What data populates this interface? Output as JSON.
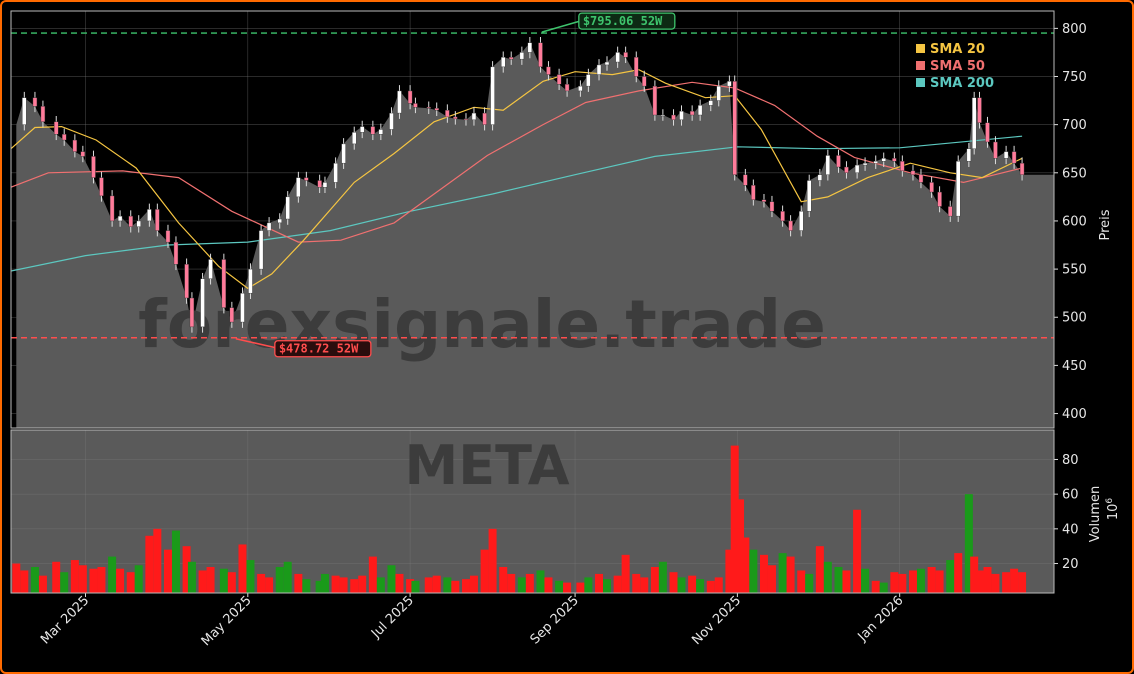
{
  "colors": {
    "bg": "#000000",
    "plot_bg": "#5a5a5a",
    "grid": "#7a7a7a",
    "up": "#1a9a1a",
    "down": "#ff1a1a",
    "sma20": "#f5c542",
    "sma50": "#f07070",
    "sma200": "#5cc8c0",
    "high": "#3ec46d",
    "low": "#ff4d4d",
    "border": "#ff6a00"
  },
  "watermark": {
    "brand": "forexsignale.trade",
    "ticker": "META"
  },
  "price_panel": {
    "ylabel": "Preis",
    "ylim": [
      385,
      818
    ],
    "yticks": [
      400,
      450,
      500,
      550,
      600,
      650,
      700,
      750,
      800
    ]
  },
  "volume_panel": {
    "ylabel": "Volumen",
    "unit": "10",
    "unit_exp": "6",
    "ylim": [
      3,
      97
    ],
    "yticks": [
      20,
      40,
      60,
      80
    ]
  },
  "annotations": {
    "high": {
      "value": 795.06,
      "label": "$795.06 52W"
    },
    "low": {
      "value": 478.72,
      "label": "$478.72 52W"
    }
  },
  "legend": [
    {
      "key": "sma20",
      "label": "SMA 20",
      "color": "#f5c542"
    },
    {
      "key": "sma50",
      "label": "SMA 50",
      "color": "#f07070"
    },
    {
      "key": "sma200",
      "label": "SMA 200",
      "color": "#5cc8c0"
    }
  ],
  "chart_data": {
    "type": "line",
    "title": "",
    "xlabel": "",
    "x_ticks": [
      "Mar 2025",
      "May 2025",
      "Jul 2025",
      "Sep 2025",
      "Nov 2025",
      "Jan 2026"
    ],
    "x_tick_dates": [
      "2025-03-01",
      "2025-05-01",
      "2025-07-01",
      "2025-09-01",
      "2025-11-01",
      "2026-01-01"
    ],
    "x_range": [
      "2025-02-01",
      "2026-02-28"
    ],
    "close_series": [
      [
        "2025-02-03",
        700
      ],
      [
        "2025-02-06",
        728
      ],
      [
        "2025-02-10",
        719
      ],
      [
        "2025-02-13",
        703
      ],
      [
        "2025-02-18",
        690
      ],
      [
        "2025-02-21",
        684
      ],
      [
        "2025-02-25",
        672
      ],
      [
        "2025-02-28",
        667
      ],
      [
        "2025-03-04",
        645
      ],
      [
        "2025-03-07",
        626
      ],
      [
        "2025-03-11",
        600
      ],
      [
        "2025-03-14",
        605
      ],
      [
        "2025-03-18",
        594
      ],
      [
        "2025-03-21",
        600
      ],
      [
        "2025-03-25",
        612
      ],
      [
        "2025-03-28",
        590
      ],
      [
        "2025-04-01",
        578
      ],
      [
        "2025-04-04",
        555
      ],
      [
        "2025-04-08",
        520
      ],
      [
        "2025-04-10",
        490
      ],
      [
        "2025-04-14",
        540
      ],
      [
        "2025-04-17",
        560
      ],
      [
        "2025-04-22",
        510
      ],
      [
        "2025-04-25",
        495
      ],
      [
        "2025-04-29",
        525
      ],
      [
        "2025-05-02",
        550
      ],
      [
        "2025-05-06",
        590
      ],
      [
        "2025-05-09",
        598
      ],
      [
        "2025-05-13",
        602
      ],
      [
        "2025-05-16",
        625
      ],
      [
        "2025-05-20",
        645
      ],
      [
        "2025-05-23",
        642
      ],
      [
        "2025-05-28",
        635
      ],
      [
        "2025-05-30",
        640
      ],
      [
        "2025-06-03",
        660
      ],
      [
        "2025-06-06",
        680
      ],
      [
        "2025-06-10",
        692
      ],
      [
        "2025-06-13",
        698
      ],
      [
        "2025-06-17",
        690
      ],
      [
        "2025-06-20",
        695
      ],
      [
        "2025-06-24",
        712
      ],
      [
        "2025-06-27",
        735
      ],
      [
        "2025-07-01",
        722
      ],
      [
        "2025-07-03",
        718
      ],
      [
        "2025-07-08",
        717
      ],
      [
        "2025-07-11",
        715
      ],
      [
        "2025-07-15",
        708
      ],
      [
        "2025-07-18",
        706
      ],
      [
        "2025-07-22",
        705
      ],
      [
        "2025-07-25",
        712
      ],
      [
        "2025-07-29",
        700
      ],
      [
        "2025-08-01",
        760
      ],
      [
        "2025-08-05",
        770
      ],
      [
        "2025-08-08",
        768
      ],
      [
        "2025-08-12",
        775
      ],
      [
        "2025-08-15",
        785
      ],
      [
        "2025-08-19",
        760
      ],
      [
        "2025-08-22",
        752
      ],
      [
        "2025-08-26",
        742
      ],
      [
        "2025-08-29",
        735
      ],
      [
        "2025-09-03",
        740
      ],
      [
        "2025-09-06",
        752
      ],
      [
        "2025-09-10",
        762
      ],
      [
        "2025-09-13",
        765
      ],
      [
        "2025-09-17",
        775
      ],
      [
        "2025-09-20",
        770
      ],
      [
        "2025-09-24",
        750
      ],
      [
        "2025-09-27",
        740
      ],
      [
        "2025-10-01",
        710
      ],
      [
        "2025-10-04",
        710
      ],
      [
        "2025-10-08",
        705
      ],
      [
        "2025-10-11",
        714
      ],
      [
        "2025-10-15",
        710
      ],
      [
        "2025-10-18",
        720
      ],
      [
        "2025-10-22",
        725
      ],
      [
        "2025-10-25",
        740
      ],
      [
        "2025-10-29",
        745
      ],
      [
        "2025-10-31",
        648
      ],
      [
        "2025-11-04",
        637
      ],
      [
        "2025-11-07",
        622
      ],
      [
        "2025-11-11",
        620
      ],
      [
        "2025-11-14",
        610
      ],
      [
        "2025-11-18",
        600
      ],
      [
        "2025-11-21",
        590
      ],
      [
        "2025-11-25",
        610
      ],
      [
        "2025-11-28",
        642
      ],
      [
        "2025-12-02",
        648
      ],
      [
        "2025-12-05",
        668
      ],
      [
        "2025-12-09",
        656
      ],
      [
        "2025-12-12",
        650
      ],
      [
        "2025-12-16",
        658
      ],
      [
        "2025-12-19",
        660
      ],
      [
        "2025-12-23",
        662
      ],
      [
        "2025-12-26",
        665
      ],
      [
        "2025-12-30",
        662
      ],
      [
        "2026-01-02",
        652
      ],
      [
        "2026-01-06",
        648
      ],
      [
        "2026-01-09",
        640
      ],
      [
        "2026-01-13",
        630
      ],
      [
        "2026-01-16",
        615
      ],
      [
        "2026-01-20",
        605
      ],
      [
        "2026-01-23",
        662
      ],
      [
        "2026-01-27",
        675
      ],
      [
        "2026-01-29",
        728
      ],
      [
        "2026-01-31",
        702
      ],
      [
        "2026-02-03",
        682
      ],
      [
        "2026-02-06",
        665
      ],
      [
        "2026-02-10",
        672
      ],
      [
        "2026-02-13",
        660
      ],
      [
        "2026-02-16",
        648
      ]
    ],
    "sma20": [
      [
        "2025-02-01",
        675
      ],
      [
        "2025-02-10",
        697
      ],
      [
        "2025-02-20",
        698
      ],
      [
        "2025-03-05",
        684
      ],
      [
        "2025-03-20",
        655
      ],
      [
        "2025-04-05",
        598
      ],
      [
        "2025-04-20",
        553
      ],
      [
        "2025-05-01",
        530
      ],
      [
        "2025-05-10",
        545
      ],
      [
        "2025-05-22",
        580
      ],
      [
        "2025-06-10",
        640
      ],
      [
        "2025-06-25",
        670
      ],
      [
        "2025-07-10",
        703
      ],
      [
        "2025-07-25",
        718
      ],
      [
        "2025-08-05",
        715
      ],
      [
        "2025-08-20",
        745
      ],
      [
        "2025-09-01",
        755
      ],
      [
        "2025-09-15",
        752
      ],
      [
        "2025-09-25",
        757
      ],
      [
        "2025-10-05",
        743
      ],
      [
        "2025-10-20",
        728
      ],
      [
        "2025-10-31",
        730
      ],
      [
        "2025-11-10",
        695
      ],
      [
        "2025-11-25",
        620
      ],
      [
        "2025-12-05",
        625
      ],
      [
        "2025-12-20",
        645
      ],
      [
        "2026-01-05",
        660
      ],
      [
        "2026-01-20",
        650
      ],
      [
        "2026-02-01",
        645
      ],
      [
        "2026-02-16",
        665
      ]
    ],
    "sma50": [
      [
        "2025-02-01",
        635
      ],
      [
        "2025-02-15",
        650
      ],
      [
        "2025-03-15",
        652
      ],
      [
        "2025-04-05",
        645
      ],
      [
        "2025-04-25",
        610
      ],
      [
        "2025-05-20",
        578
      ],
      [
        "2025-06-05",
        580
      ],
      [
        "2025-06-25",
        598
      ],
      [
        "2025-07-10",
        628
      ],
      [
        "2025-07-30",
        668
      ],
      [
        "2025-08-20",
        700
      ],
      [
        "2025-09-05",
        723
      ],
      [
        "2025-09-25",
        735
      ],
      [
        "2025-10-15",
        744
      ],
      [
        "2025-10-31",
        738
      ],
      [
        "2025-11-15",
        720
      ],
      [
        "2025-12-01",
        688
      ],
      [
        "2025-12-15",
        666
      ],
      [
        "2026-01-05",
        650
      ],
      [
        "2026-01-25",
        640
      ],
      [
        "2026-02-16",
        655
      ]
    ],
    "sma200": [
      [
        "2025-02-01",
        548
      ],
      [
        "2025-03-01",
        564
      ],
      [
        "2025-04-01",
        575
      ],
      [
        "2025-05-01",
        578
      ],
      [
        "2025-06-01",
        590
      ],
      [
        "2025-07-01",
        610
      ],
      [
        "2025-08-01",
        628
      ],
      [
        "2025-09-01",
        648
      ],
      [
        "2025-10-01",
        667
      ],
      [
        "2025-11-01",
        677
      ],
      [
        "2025-12-01",
        675
      ],
      [
        "2026-01-01",
        676
      ],
      [
        "2026-02-16",
        688
      ]
    ],
    "volume": [
      [
        "2025-02-03",
        20,
        "down"
      ],
      [
        "2025-02-06",
        16,
        "down"
      ],
      [
        "2025-02-10",
        18,
        "up"
      ],
      [
        "2025-02-13",
        13,
        "down"
      ],
      [
        "2025-02-18",
        21,
        "down"
      ],
      [
        "2025-02-21",
        15,
        "up"
      ],
      [
        "2025-02-25",
        22,
        "down"
      ],
      [
        "2025-02-28",
        19,
        "down"
      ],
      [
        "2025-03-04",
        17,
        "down"
      ],
      [
        "2025-03-07",
        18,
        "down"
      ],
      [
        "2025-03-11",
        24,
        "up"
      ],
      [
        "2025-03-14",
        17,
        "down"
      ],
      [
        "2025-03-18",
        15,
        "down"
      ],
      [
        "2025-03-21",
        19,
        "up"
      ],
      [
        "2025-03-25",
        36,
        "down"
      ],
      [
        "2025-03-28",
        40,
        "down"
      ],
      [
        "2025-04-01",
        28,
        "down"
      ],
      [
        "2025-04-04",
        39,
        "up"
      ],
      [
        "2025-04-08",
        30,
        "down"
      ],
      [
        "2025-04-10",
        21,
        "up"
      ],
      [
        "2025-04-14",
        16,
        "down"
      ],
      [
        "2025-04-17",
        18,
        "down"
      ],
      [
        "2025-04-22",
        17,
        "up"
      ],
      [
        "2025-04-25",
        15,
        "down"
      ],
      [
        "2025-04-29",
        31,
        "down"
      ],
      [
        "2025-05-02",
        22,
        "up"
      ],
      [
        "2025-05-06",
        14,
        "down"
      ],
      [
        "2025-05-09",
        12,
        "down"
      ],
      [
        "2025-05-13",
        18,
        "up"
      ],
      [
        "2025-05-16",
        21,
        "up"
      ],
      [
        "2025-05-20",
        14,
        "down"
      ],
      [
        "2025-05-23",
        11,
        "up"
      ],
      [
        "2025-05-28",
        10,
        "up"
      ],
      [
        "2025-05-30",
        14,
        "up"
      ],
      [
        "2025-06-03",
        13,
        "down"
      ],
      [
        "2025-06-06",
        12,
        "down"
      ],
      [
        "2025-06-10",
        11,
        "down"
      ],
      [
        "2025-06-13",
        13,
        "down"
      ],
      [
        "2025-06-17",
        24,
        "down"
      ],
      [
        "2025-06-20",
        12,
        "up"
      ],
      [
        "2025-06-24",
        19,
        "up"
      ],
      [
        "2025-06-27",
        14,
        "down"
      ],
      [
        "2025-07-01",
        11,
        "down"
      ],
      [
        "2025-07-03",
        10,
        "up"
      ],
      [
        "2025-07-08",
        12,
        "down"
      ],
      [
        "2025-07-11",
        13,
        "down"
      ],
      [
        "2025-07-15",
        12,
        "up"
      ],
      [
        "2025-07-18",
        10,
        "down"
      ],
      [
        "2025-07-22",
        11,
        "down"
      ],
      [
        "2025-07-25",
        13,
        "down"
      ],
      [
        "2025-07-29",
        28,
        "down"
      ],
      [
        "2025-08-01",
        40,
        "down"
      ],
      [
        "2025-08-05",
        18,
        "down"
      ],
      [
        "2025-08-08",
        14,
        "down"
      ],
      [
        "2025-08-12",
        12,
        "up"
      ],
      [
        "2025-08-15",
        14,
        "down"
      ],
      [
        "2025-08-19",
        16,
        "up"
      ],
      [
        "2025-08-22",
        12,
        "down"
      ],
      [
        "2025-08-26",
        10,
        "up"
      ],
      [
        "2025-08-29",
        9,
        "down"
      ],
      [
        "2025-09-03",
        9,
        "down"
      ],
      [
        "2025-09-06",
        12,
        "up"
      ],
      [
        "2025-09-10",
        14,
        "down"
      ],
      [
        "2025-09-13",
        11,
        "up"
      ],
      [
        "2025-09-17",
        13,
        "down"
      ],
      [
        "2025-09-20",
        25,
        "down"
      ],
      [
        "2025-09-24",
        14,
        "down"
      ],
      [
        "2025-09-27",
        12,
        "down"
      ],
      [
        "2025-10-01",
        18,
        "down"
      ],
      [
        "2025-10-04",
        21,
        "up"
      ],
      [
        "2025-10-08",
        15,
        "down"
      ],
      [
        "2025-10-11",
        12,
        "up"
      ],
      [
        "2025-10-15",
        13,
        "down"
      ],
      [
        "2025-10-18",
        11,
        "up"
      ],
      [
        "2025-10-22",
        10,
        "down"
      ],
      [
        "2025-10-25",
        12,
        "down"
      ],
      [
        "2025-10-29",
        28,
        "down"
      ],
      [
        "2025-10-31",
        88,
        "down"
      ],
      [
        "2025-11-02",
        57,
        "down"
      ],
      [
        "2025-11-04",
        35,
        "down"
      ],
      [
        "2025-11-07",
        28,
        "up"
      ],
      [
        "2025-11-11",
        25,
        "down"
      ],
      [
        "2025-11-14",
        19,
        "down"
      ],
      [
        "2025-11-18",
        26,
        "up"
      ],
      [
        "2025-11-21",
        24,
        "down"
      ],
      [
        "2025-11-25",
        16,
        "down"
      ],
      [
        "2025-11-28",
        14,
        "up"
      ],
      [
        "2025-12-02",
        30,
        "down"
      ],
      [
        "2025-12-05",
        21,
        "up"
      ],
      [
        "2025-12-09",
        18,
        "up"
      ],
      [
        "2025-12-12",
        16,
        "down"
      ],
      [
        "2025-12-16",
        51,
        "down"
      ],
      [
        "2025-12-19",
        17,
        "up"
      ],
      [
        "2025-12-23",
        10,
        "down"
      ],
      [
        "2025-12-26",
        9,
        "up"
      ],
      [
        "2025-12-30",
        15,
        "down"
      ],
      [
        "2026-01-02",
        14,
        "down"
      ],
      [
        "2026-01-06",
        16,
        "down"
      ],
      [
        "2026-01-09",
        17,
        "up"
      ],
      [
        "2026-01-13",
        18,
        "down"
      ],
      [
        "2026-01-16",
        16,
        "down"
      ],
      [
        "2026-01-20",
        22,
        "up"
      ],
      [
        "2026-01-23",
        26,
        "down"
      ],
      [
        "2026-01-27",
        60,
        "up"
      ],
      [
        "2026-01-29",
        24,
        "down"
      ],
      [
        "2026-01-31",
        16,
        "down"
      ],
      [
        "2026-02-03",
        18,
        "down"
      ],
      [
        "2026-02-06",
        14,
        "down"
      ],
      [
        "2026-02-10",
        15,
        "down"
      ],
      [
        "2026-02-13",
        17,
        "down"
      ],
      [
        "2026-02-16",
        15,
        "down"
      ]
    ]
  }
}
